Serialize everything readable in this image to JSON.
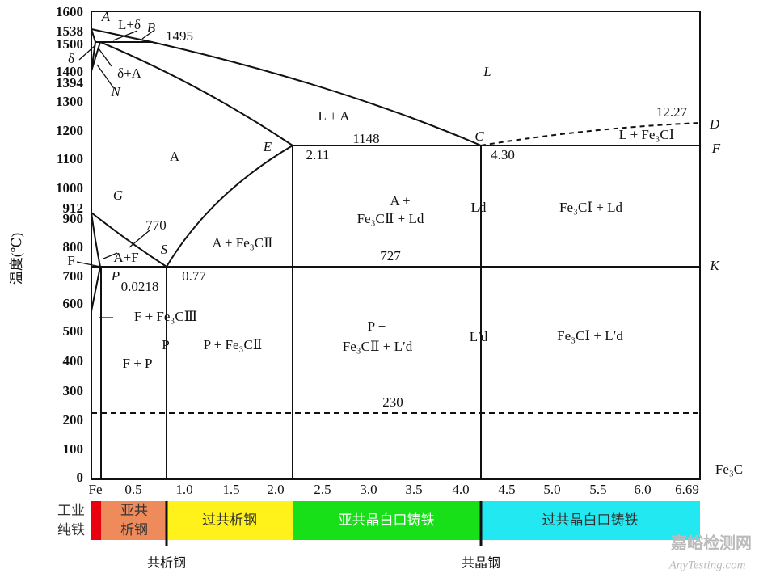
{
  "y_axis": {
    "title": "温度(℃)",
    "tick_labels": [
      "1600",
      "1538",
      "1500",
      "1400",
      "1394",
      "1300",
      "1200",
      "1100",
      "1000",
      "912",
      "900",
      "800",
      "700",
      "600",
      "500",
      "400",
      "300",
      "200",
      "100",
      "0"
    ]
  },
  "x_axis": {
    "tick_labels": [
      "Fe",
      "0.5",
      "1.0",
      "1.5",
      "2.0",
      "2.5",
      "3.0",
      "3.5",
      "4.0",
      "4.5",
      "5.0",
      "5.5",
      "6.0",
      "6.69"
    ],
    "end_label": "Fe₃C"
  },
  "labels": [
    "A",
    "L+δ",
    "B",
    "1495",
    "δ",
    "δ+A",
    "N",
    "L",
    "L + A",
    "1148",
    "C",
    "12.27",
    "D",
    "L + Fe₃CⅠ",
    "F",
    "E",
    "2.11",
    "4.30",
    "A",
    "G",
    "A +",
    "Fe₃CⅡ + Ld",
    "Ld",
    "Fe₃CⅠ + Ld",
    "770",
    "S",
    "A + Fe₃CⅡ",
    "A+F",
    "F",
    "727",
    "K",
    "P",
    "0.0218",
    "0.77",
    "F + Fe₃CⅢ",
    "P +",
    "Fe₃CⅡ + L′d",
    "L′d",
    "Fe₃CⅠ + L′d",
    "P",
    "P + Fe₃CⅡ",
    "F + P",
    "230"
  ],
  "steel_bar": [
    [
      "工业",
      "纯铁"
    ],
    [
      "亚共",
      "析钢"
    ],
    [
      "过共析钢"
    ],
    [
      "亚共晶白口铸铁"
    ],
    [
      "过共晶白口铸铁"
    ]
  ],
  "bar_markers": [
    "共析钢",
    "共晶钢"
  ],
  "watermark": [
    "嘉峪检测网",
    "AnyTesting.com"
  ]
}
